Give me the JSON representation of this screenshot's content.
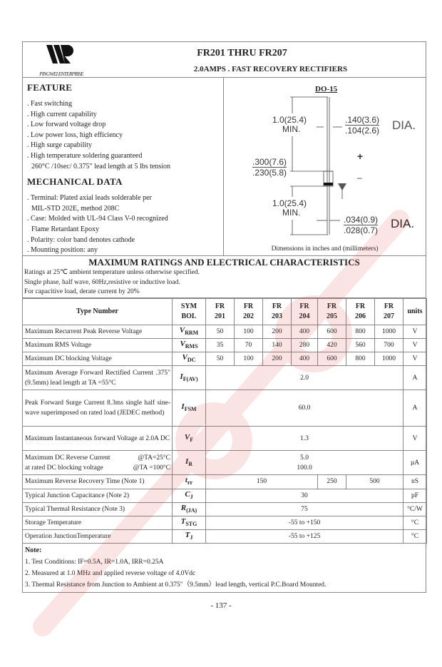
{
  "header": {
    "title": "FR201 THRU FR207",
    "subtitle": "2.0AMPS . FAST RECOVERY RECTIFIERS",
    "logo_text": "PINGWEI ENTERPRISE"
  },
  "feature": {
    "heading": "FEATURE",
    "items": [
      ". Fast switching",
      ". High current capability",
      ". Low forward voltage drop",
      ". Low power loss, high efficiency",
      ". High surge capability",
      ". High temperature soldering guaranteed",
      "  260°C /10sec/ 0.375\" lead length at 5 lbs tension"
    ]
  },
  "mechanical": {
    "heading": "MECHANICAL DATA",
    "items": [
      ". Terminal: Plated axial leads solderable per",
      "  MIL-STD 202E, method 208C",
      ". Case: Molded with UL-94 Class V-0 recognized",
      "  Flame Retardant Epoxy",
      ". Polarity: color band denotes cathode",
      ". Mounting position: any"
    ]
  },
  "package": {
    "name": "DO-15",
    "lead_len_top": "1.0(25.4)",
    "min1": "MIN.",
    "body_dia_max": ".140(3.6)",
    "body_dia_min": ".104(2.6)",
    "dia1": "DIA.",
    "body_len_max": ".300(7.6)",
    "body_len_min": ".230(5.8)",
    "lead_len_bottom": "1.0(25.4)",
    "min2": "MIN.",
    "lead_dia_max": ".034(0.9)",
    "lead_dia_min": ".028(0.7)",
    "dia2": "DIA.",
    "plus": "+",
    "minus": "–",
    "caption": "Dimensions in inches and (millimeters)"
  },
  "ratings": {
    "title": "MAXIMUM RATINGS AND ELECTRICAL CHARACTERISTICS",
    "conditions": [
      "Ratings at 25℃ ambient temperature unless otherwise specified.",
      "Single phase, half wave, 60Hz,resistive or inductive load.",
      "For capacitive load, derate current by 20%"
    ]
  },
  "table": {
    "head": {
      "type": "Type Number",
      "sym1": "SYM",
      "sym2": "BOL",
      "fr": "FR",
      "parts": [
        "201",
        "202",
        "203",
        "204",
        "205",
        "206",
        "207"
      ],
      "units": "units"
    },
    "rows": [
      {
        "desc": "Maximum Recurrent Peak Reverse Voltage",
        "sym": "V",
        "sub": "RRM",
        "values": [
          "50",
          "100",
          "200",
          "400",
          "600",
          "800",
          "1000"
        ],
        "unit": "V"
      },
      {
        "desc": "Maximum RMS Voltage",
        "sym": "V",
        "sub": "RMS",
        "values": [
          "35",
          "70",
          "140",
          "280",
          "420",
          "560",
          "700"
        ],
        "unit": "V"
      },
      {
        "desc": "Maximum DC blocking Voltage",
        "sym": "V",
        "sub": "DC",
        "values": [
          "50",
          "100",
          "200",
          "400",
          "600",
          "800",
          "1000"
        ],
        "unit": "V"
      },
      {
        "desc": "Maximum Average Forward Rectified Current .375\"(9.5mm) lead length at TA =55°C",
        "sym": "I",
        "sub": "F(AV)",
        "value": "2.0",
        "unit": "A"
      },
      {
        "desc": "Peak Forward Surge Current 8.3ms single half sine-wave superimposed on rated load (JEDEC method)",
        "sym": "I",
        "sub": "FSM",
        "value": "60.0",
        "unit": "A"
      },
      {
        "desc": "Maximum Instantaneous forward Voltage at 2.0A DC",
        "sym": "V",
        "sub": "F",
        "value": "1.3",
        "unit": "V"
      },
      {
        "desc1": "Maximum DC Reverse Current",
        "cond1": "@TA=25°C",
        "desc2": "at rated DC blocking voltage",
        "cond2": "@TA =100°C",
        "sym": "I",
        "sub": "R",
        "value1": "5.0",
        "value2": "100.0",
        "unit": "µA"
      },
      {
        "desc": "Maximum Reverse Recovery Time (Note 1)",
        "sym": "t",
        "sub": "rr",
        "values": [
          "150",
          "250",
          "500"
        ],
        "unit": "nS"
      },
      {
        "desc": "Typical Junction Capacitance (Note 2)",
        "sym": "C",
        "sub": "J",
        "value": "30",
        "unit": "pF"
      },
      {
        "desc": "Typical Thermal Resistance (Note 3)",
        "sym": "R",
        "sub": "(JA)",
        "value": "75",
        "unit": "°C/W"
      },
      {
        "desc": "Storage Temperature",
        "sym": "T",
        "sub": "STG",
        "value": "-55 to +150",
        "unit": "°C"
      },
      {
        "desc": "Operation JunctionTemperature",
        "sym": "T",
        "sub": "J",
        "value": "-55 to +125",
        "unit": "°C"
      }
    ]
  },
  "notes": {
    "heading": "Note:",
    "items": [
      "1. Test Conditions: IF=0.5A, IR=1.0A, IRR=0.25A",
      "2. Measured at 1.0 MHz and applied reverse voltage of 4.0Vdc",
      "3. Thermal Resistance from Junction to Ambient at 0.375\"（9.5mm）lead length, vertical P.C.Board Mounted."
    ]
  },
  "page_number": "- 137 -",
  "colors": {
    "watermark": "#d9302f",
    "border": "#888888"
  }
}
